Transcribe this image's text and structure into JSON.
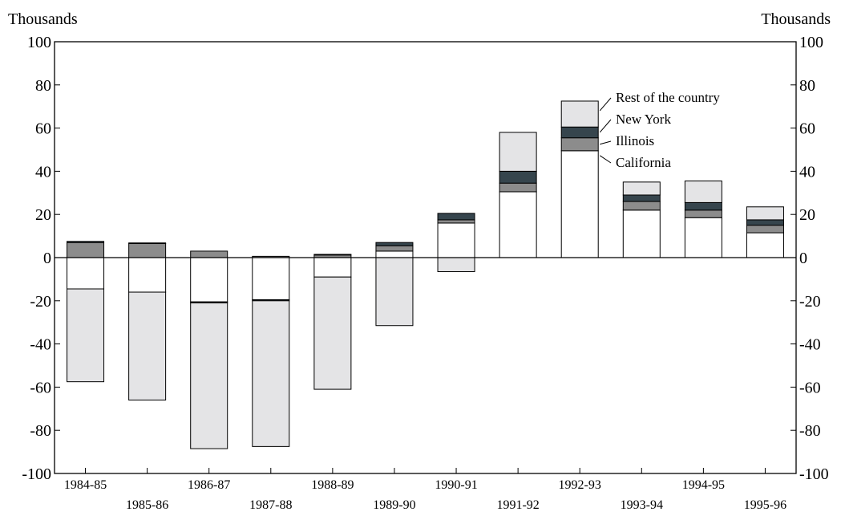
{
  "chart_data": {
    "type": "bar",
    "stacked": true,
    "left_unit_label": "Thousands",
    "right_unit_label": "Thousands",
    "ylim": [
      -100,
      100
    ],
    "y_ticks": [
      100,
      80,
      60,
      40,
      20,
      0,
      -20,
      -40,
      -60,
      -80,
      -100
    ],
    "y_tick_labels": [
      "100",
      "80",
      "60",
      "40",
      "20",
      "0",
      "-20",
      "-40",
      "-60",
      "-80",
      "-100"
    ],
    "categories": [
      "1984-85",
      "1985-86",
      "1986-87",
      "1987-88",
      "1988-89",
      "1989-90",
      "1990-91",
      "1991-92",
      "1992-93",
      "1993-94",
      "1994-95",
      "1995-96"
    ],
    "series": [
      {
        "name": "California",
        "color": "#ffffff",
        "values": [
          -14.5,
          -16,
          -20.5,
          -19.5,
          -9,
          3,
          16,
          30.5,
          49.5,
          22,
          18.5,
          11.5
        ]
      },
      {
        "name": "Illinois",
        "color": "#8c8c8c",
        "values": [
          7,
          6.5,
          3,
          0.6,
          1.2,
          2.5,
          1.5,
          4,
          6,
          4,
          3.5,
          3.5
        ]
      },
      {
        "name": "New York",
        "color": "#36454d",
        "values": [
          0.5,
          0.3,
          -0.5,
          -0.5,
          0.3,
          1.5,
          3,
          5.5,
          5,
          3,
          3.5,
          2.5
        ]
      },
      {
        "name": "Rest of the country",
        "color": "#e4e4e6",
        "values": [
          -43,
          -50,
          -67.5,
          -67.5,
          -52,
          -31.5,
          -6.5,
          18,
          12,
          6,
          10,
          6
        ]
      }
    ],
    "legend": [
      "Rest of the country",
      "New York",
      "Illinois",
      "California"
    ],
    "legend_placement": "right of 1992-93 bar",
    "grid": false
  }
}
